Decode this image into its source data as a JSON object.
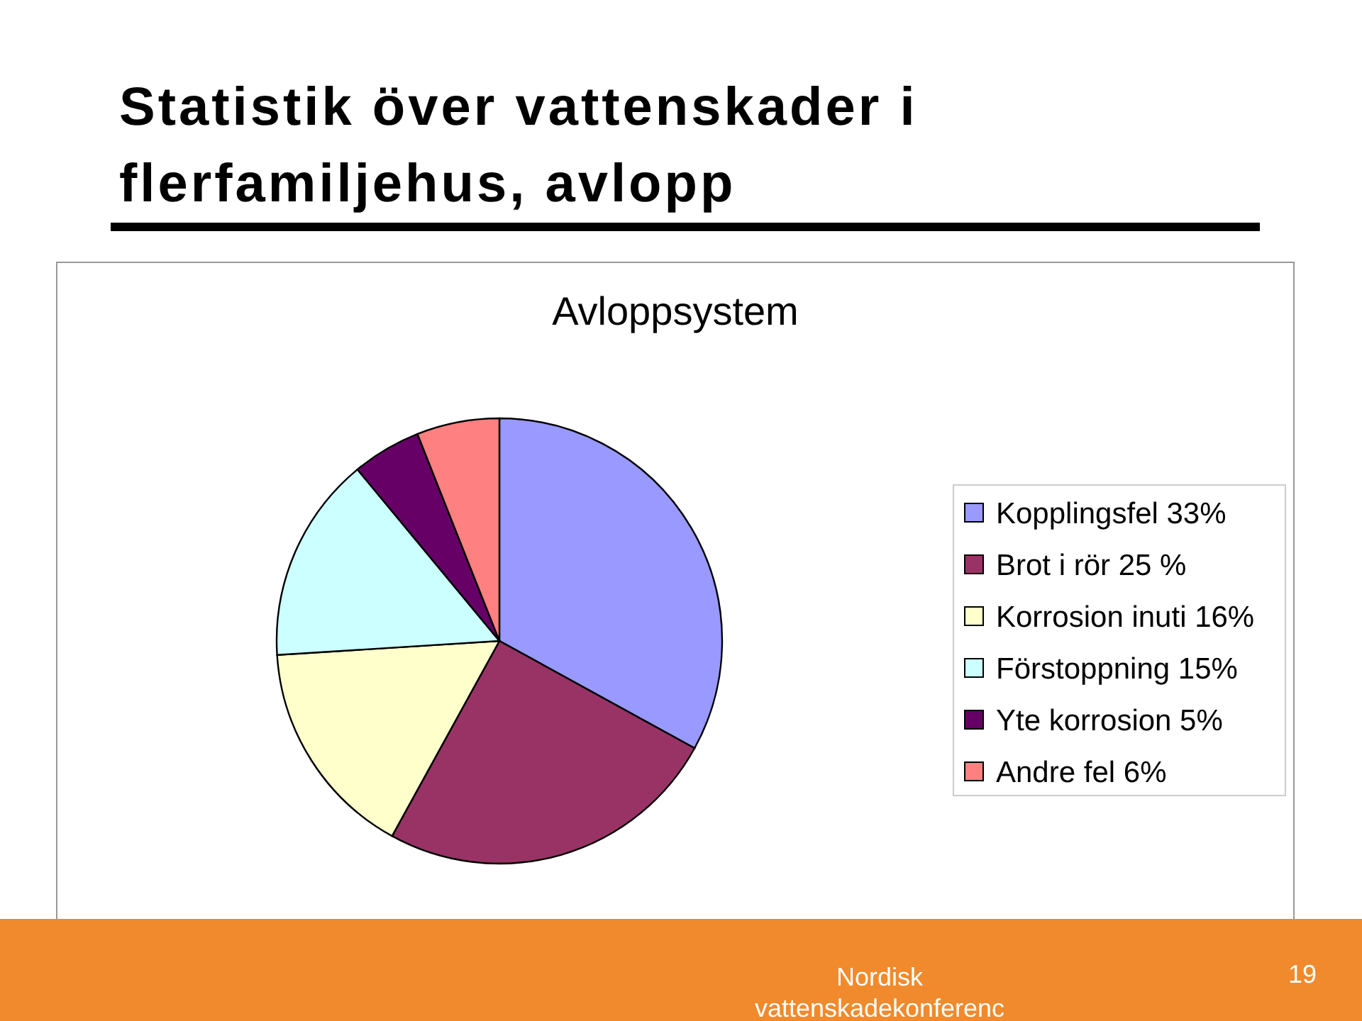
{
  "chart_data": {
    "type": "pie",
    "title": "Statistik över vattenskader i flerfamiljehus, avlopp",
    "subtitle": "Avloppsystem",
    "categories": [
      "Kopplingsfel 33%",
      "Brot i rör 25 %",
      "Korrosion inuti 16%",
      "Förstoppning 15%",
      "Yte korrosion 5%",
      "Andre fel 6%"
    ],
    "values": [
      33,
      25,
      16,
      15,
      5,
      6
    ],
    "colors": [
      "#9999ff",
      "#993366",
      "#ffffcc",
      "#ccffff",
      "#660066",
      "#ff8080"
    ],
    "legend": "right",
    "annotations": [
      "Nordisk vattenskadekonferenc",
      "19"
    ]
  }
}
